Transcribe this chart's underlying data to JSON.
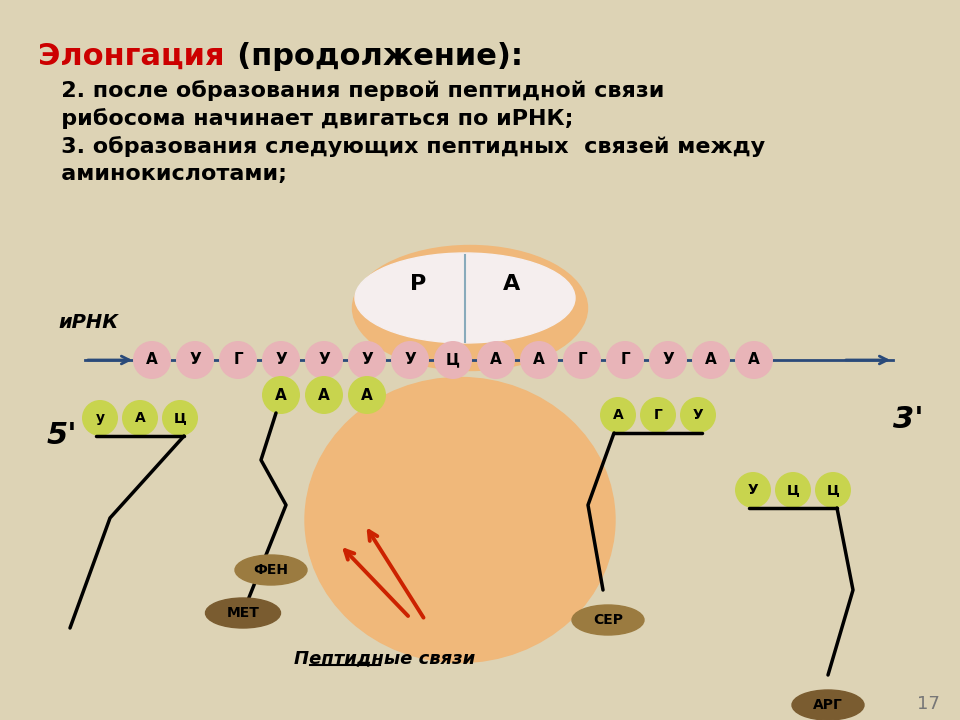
{
  "bg_color": "#ddd3b5",
  "title_red": "Элонгация",
  "title_black": "  (продолжение):",
  "subtitle_lines": [
    "   2. после образования первой пептидной связи",
    "   рибосома начинает двигаться по иРНК;",
    "   3. образования следующих пептидных  связей между",
    "   аминокислотами;"
  ],
  "mrna_label": "иРНК",
  "mrna_sequence": [
    "А",
    "У",
    "Г",
    "У",
    "У",
    "У",
    "У",
    "Ц",
    "А",
    "А",
    "Г",
    "Г",
    "У",
    "А",
    "А"
  ],
  "ribosome_sites": [
    "Р",
    "А"
  ],
  "trna_p_codons": [
    "А",
    "А",
    "А"
  ],
  "trna_left_codons": [
    "у",
    "А",
    "Ц"
  ],
  "trna_ser_codons": [
    "А",
    "Г",
    "У"
  ],
  "trna_ucc_codons": [
    "У",
    "Ц",
    "Ц"
  ],
  "aa_fen": "ФЕН",
  "aa_met": "МЕТ",
  "aa_ser": "СЕР",
  "aa_arg": "АРГ",
  "label_5prime": "5'",
  "label_3prime": "3'",
  "peptide_bonds_label": "Пептидные связи",
  "page_num": "17",
  "ribosome_color": "#f0b87a",
  "ribosome_top_color": "#f0b87a",
  "mrna_bead_color": "#e8b4b8",
  "trna_bead_color": "#c8d44e",
  "aa_brown_light": "#9b7b40",
  "aa_brown_dark": "#7a5c30",
  "white_oval_color": "#f5eeee",
  "arrow_color": "#2a4a7a",
  "red_color": "#cc2200"
}
